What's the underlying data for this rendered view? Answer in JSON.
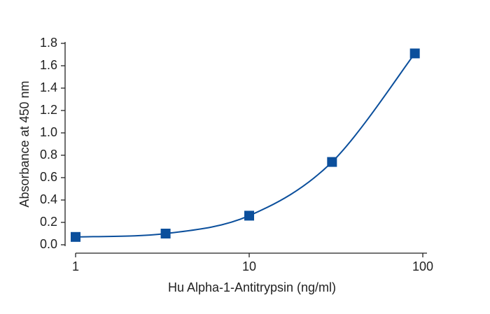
{
  "chart_data": {
    "type": "scatter",
    "x_label": "Hu Alpha-1-Antitrypsin (ng/ml)",
    "y_label": "Absorbance at 450 nm",
    "x_scale": "log",
    "xlim": [
      1,
      100
    ],
    "xticks": [
      1,
      10,
      100
    ],
    "ylim": [
      0,
      1.8
    ],
    "yticks": [
      {
        "value": 0,
        "label": "0.0"
      },
      0.2,
      0.4,
      0.6,
      0.8,
      {
        "value": 1,
        "label": "1.0"
      },
      1.2,
      1.4,
      1.6,
      1.8
    ],
    "series": [
      {
        "color": "#0b4f9c",
        "x": [
          1,
          3.3,
          10,
          30,
          90
        ],
        "values": [
          0.07,
          0.1,
          0.26,
          0.74,
          1.71
        ]
      }
    ],
    "fit_line": true
  }
}
